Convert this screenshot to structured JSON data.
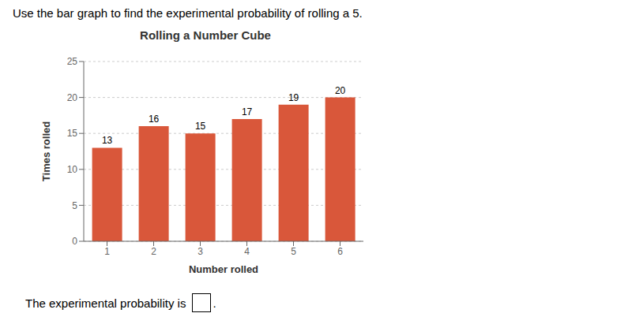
{
  "chart_data": {
    "type": "bar",
    "title": "Rolling a Number Cube",
    "x_label": "Number rolled",
    "y_label": "Times rolled",
    "categories": [
      1,
      2,
      3,
      4,
      5,
      6
    ],
    "values": [
      13,
      16,
      15,
      17,
      19,
      20
    ],
    "color": "#d9573a",
    "ylim": [
      0,
      25
    ],
    "yticks": [
      0,
      5,
      10,
      15,
      20,
      25
    ],
    "grid": true,
    "data_labels": true,
    "annotations": [
      "Use the bar graph to find the experimental probability of rolling a 5.",
      "The experimental probability is",
      "."
    ]
  }
}
